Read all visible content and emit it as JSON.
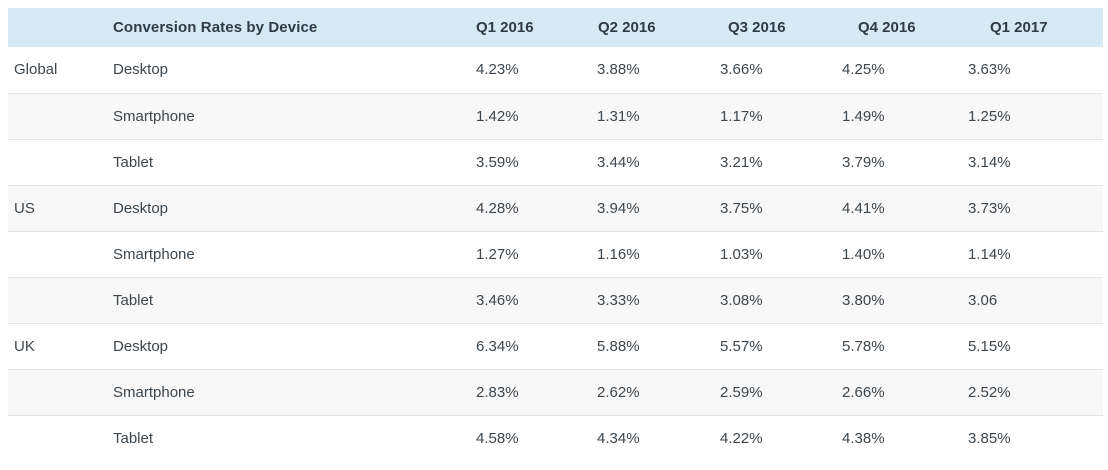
{
  "colors": {
    "page_bg": "#ffffff",
    "header_bg": "#d6eaf5",
    "header_text": "#2f3b46",
    "body_text": "#3d464d",
    "row_alt": "#f8f8f8",
    "divider": "#e4e4e4"
  },
  "chart_data": {
    "type": "table",
    "title": "Conversion Rates by Device",
    "columns": [
      "Q1 2016",
      "Q2 2016",
      "Q3 2016",
      "Q4 2016",
      "Q1 2017"
    ],
    "row_group_labels": [
      "Global",
      "US",
      "UK"
    ],
    "rows": [
      {
        "region": "Global",
        "device": "Desktop",
        "values": [
          "4.23%",
          "3.88%",
          "3.66%",
          "4.25%",
          "3.63%"
        ]
      },
      {
        "region": "",
        "device": "Smartphone",
        "values": [
          "1.42%",
          "1.31%",
          "1.17%",
          "1.49%",
          "1.25%"
        ]
      },
      {
        "region": "",
        "device": "Tablet",
        "values": [
          "3.59%",
          "3.44%",
          "3.21%",
          "3.79%",
          "3.14%"
        ]
      },
      {
        "region": "US",
        "device": "Desktop",
        "values": [
          "4.28%",
          "3.94%",
          "3.75%",
          "4.41%",
          "3.73%"
        ]
      },
      {
        "region": "",
        "device": "Smartphone",
        "values": [
          "1.27%",
          "1.16%",
          "1.03%",
          "1.40%",
          "1.14%"
        ]
      },
      {
        "region": "",
        "device": "Tablet",
        "values": [
          "3.46%",
          "3.33%",
          "3.08%",
          "3.80%",
          "3.06"
        ]
      },
      {
        "region": "UK",
        "device": "Desktop",
        "values": [
          "6.34%",
          "5.88%",
          "5.57%",
          "5.78%",
          "5.15%"
        ]
      },
      {
        "region": "",
        "device": "Smartphone",
        "values": [
          "2.83%",
          "2.62%",
          "2.59%",
          "2.66%",
          "2.52%"
        ]
      },
      {
        "region": "",
        "device": "Tablet",
        "values": [
          "4.58%",
          "4.34%",
          "4.22%",
          "4.38%",
          "3.85%"
        ]
      }
    ]
  }
}
